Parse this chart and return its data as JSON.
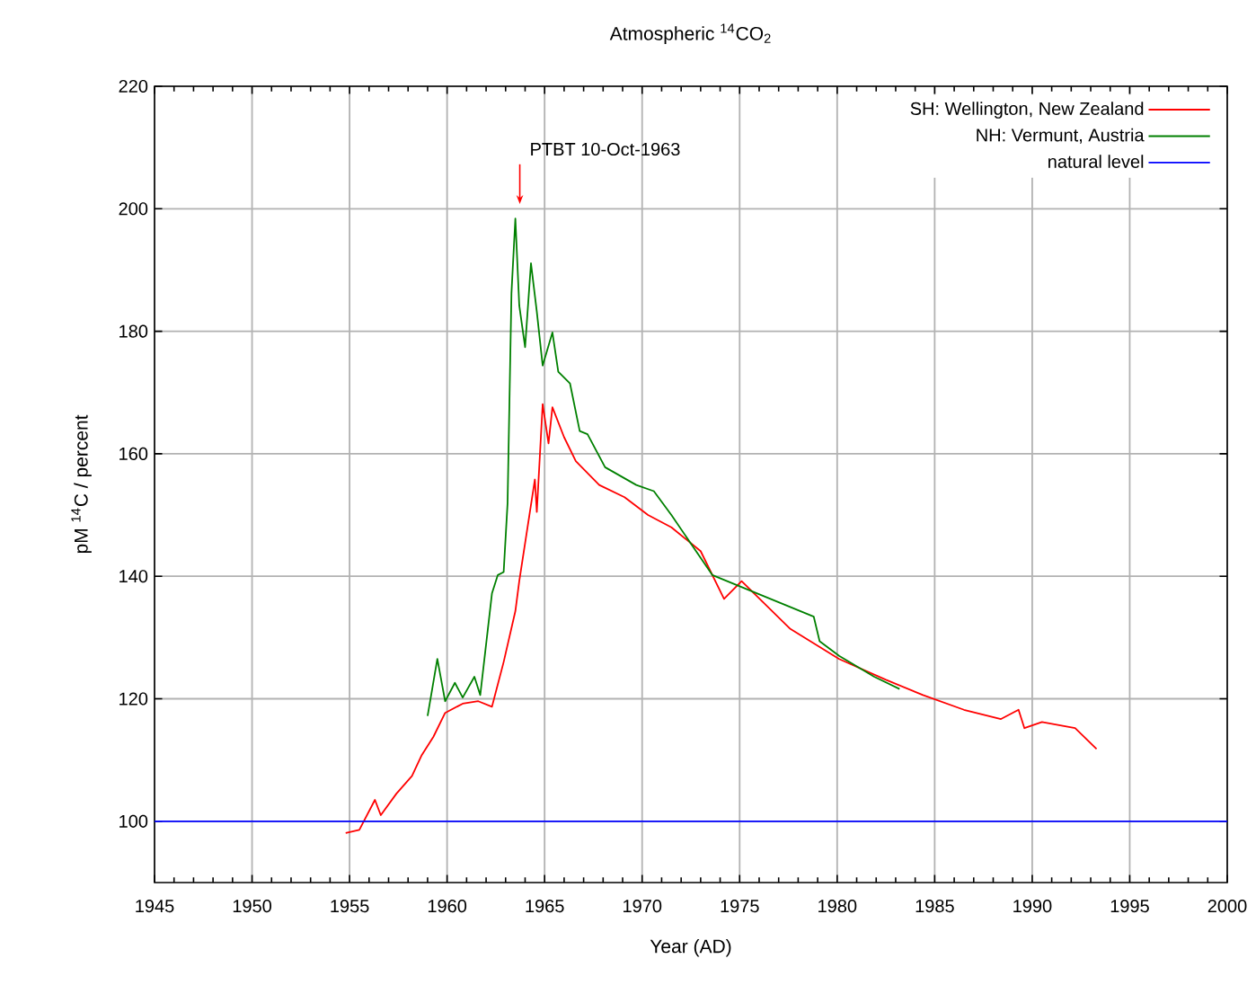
{
  "chart_data": {
    "type": "line",
    "title": "Atmospheric $^{14}$CO$_{2}$",
    "xlabel": "Year (AD)",
    "ylabel": "pM $^{14}$C / percent",
    "xlim": [
      1945,
      2000
    ],
    "ylim": [
      90,
      220
    ],
    "xticks": [
      1945,
      1950,
      1955,
      1960,
      1965,
      1970,
      1975,
      1980,
      1985,
      1990,
      1995,
      2000
    ],
    "yticks": [
      100,
      120,
      140,
      160,
      180,
      200,
      220
    ],
    "grid": true,
    "legend": "top right",
    "annotations": [
      "PTBT 10-Oct-1963"
    ],
    "series": [
      {
        "name": "SH: Wellington, New Zealand",
        "color": "#ff0000",
        "x": [
          1954.8,
          1955.5,
          1956.3,
          1956.6,
          1957.4,
          1958.2,
          1958.7,
          1959.3,
          1959.9,
          1960.8,
          1961.6,
          1962.3,
          1962.9,
          1963.5,
          1963.7,
          1964.5,
          1964.6,
          1964.9,
          1965.2,
          1965.4,
          1966.0,
          1966.6,
          1967.8,
          1969.1,
          1970.3,
          1971.5,
          1973.0,
          1974.2,
          1975.1,
          1977.6,
          1980.1,
          1982.5,
          1984.4,
          1986.5,
          1988.4,
          1989.3,
          1989.6,
          1990.5,
          1992.2,
          1993.3
        ],
        "values": [
          98.1,
          98.6,
          103.5,
          101,
          104.5,
          107.4,
          110.8,
          113.8,
          117.7,
          119.2,
          119.6,
          118.7,
          126,
          134.3,
          139.2,
          155.8,
          150.5,
          168.1,
          161.7,
          167.6,
          162.7,
          158.8,
          154.9,
          152.9,
          150,
          148,
          144.1,
          136.3,
          139.2,
          131.4,
          126.5,
          123.1,
          120.6,
          118.2,
          116.7,
          118.2,
          115.2,
          116.2,
          115.2,
          111.8
        ]
      },
      {
        "name": "NH: Vermunt, Austria",
        "color": "#008000",
        "x": [
          1959.0,
          1959.5,
          1959.9,
          1960.4,
          1960.8,
          1961.4,
          1961.7,
          1962.3,
          1962.6,
          1962.9,
          1963.1,
          1963.3,
          1963.5,
          1963.7,
          1964.0,
          1964.3,
          1964.6,
          1964.9,
          1965.4,
          1965.7,
          1966.3,
          1966.8,
          1967.2,
          1968.1,
          1969.7,
          1970.6,
          1971.5,
          1973.6,
          1978.8,
          1979.1,
          1980.1,
          1981.9,
          1983.2
        ],
        "values": [
          117.2,
          126.5,
          119.6,
          122.6,
          120.2,
          123.6,
          120.6,
          137.2,
          140.2,
          140.7,
          151.9,
          186.2,
          198.4,
          184.2,
          177.4,
          191.1,
          183.2,
          174.4,
          179.8,
          173.4,
          171.5,
          163.7,
          163.2,
          157.8,
          154.9,
          153.9,
          150,
          140.2,
          133.4,
          129.4,
          127,
          123.6,
          121.6
        ]
      },
      {
        "name": "natural level",
        "color": "#0000ff",
        "x": [
          1945,
          2000
        ],
        "values": [
          100,
          100
        ]
      }
    ]
  }
}
